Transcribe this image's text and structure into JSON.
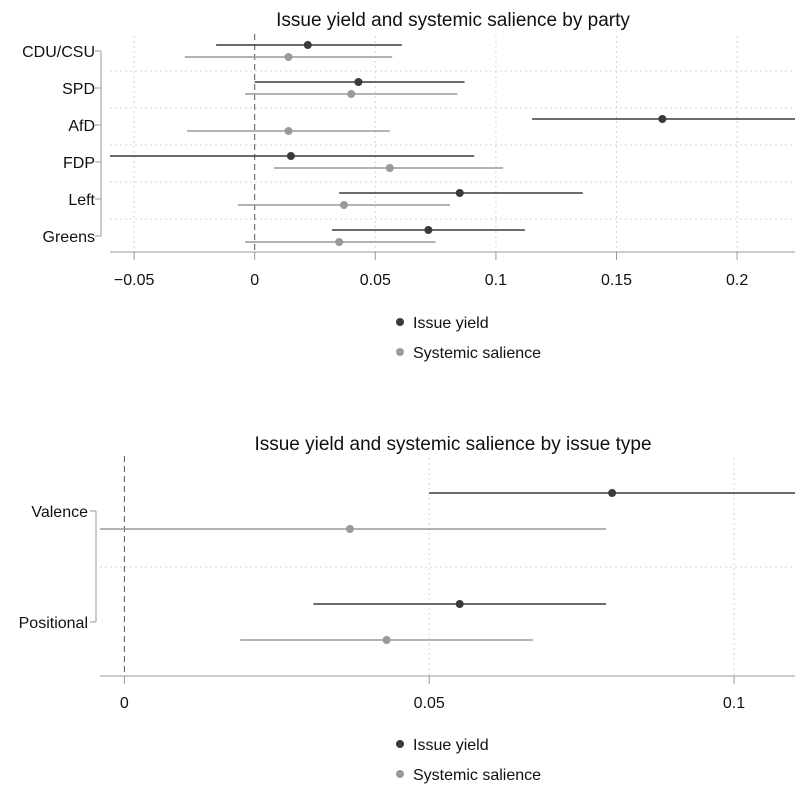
{
  "chart_data": [
    {
      "type": "scatter",
      "variant": "coefficient-plot-with-intervals",
      "title": "Issue yield and systemic salience by party",
      "categories": [
        "CDU/CSU",
        "SPD",
        "AfD",
        "FDP",
        "Left",
        "Greens"
      ],
      "series": [
        {
          "name": "Issue yield",
          "color": "#3a3a3a",
          "points": [
            {
              "category": "CDU/CSU",
              "estimate": 0.022,
              "low": -0.016,
              "high": 0.061
            },
            {
              "category": "SPD",
              "estimate": 0.043,
              "low": 0.0,
              "high": 0.087
            },
            {
              "category": "AfD",
              "estimate": 0.169,
              "low": 0.115,
              "high": 0.224
            },
            {
              "category": "FDP",
              "estimate": 0.015,
              "low": -0.06,
              "high": 0.091
            },
            {
              "category": "Left",
              "estimate": 0.085,
              "low": 0.035,
              "high": 0.136
            },
            {
              "category": "Greens",
              "estimate": 0.072,
              "low": 0.032,
              "high": 0.112
            }
          ]
        },
        {
          "name": "Systemic salience",
          "color": "#9a9a9a",
          "points": [
            {
              "category": "CDU/CSU",
              "estimate": 0.014,
              "low": -0.029,
              "high": 0.057
            },
            {
              "category": "SPD",
              "estimate": 0.04,
              "low": -0.004,
              "high": 0.084
            },
            {
              "category": "AfD",
              "estimate": 0.014,
              "low": -0.028,
              "high": 0.056
            },
            {
              "category": "FDP",
              "estimate": 0.056,
              "low": 0.008,
              "high": 0.103
            },
            {
              "category": "Left",
              "estimate": 0.037,
              "low": -0.007,
              "high": 0.081
            },
            {
              "category": "Greens",
              "estimate": 0.035,
              "low": -0.004,
              "high": 0.075
            }
          ]
        }
      ],
      "xticks": [
        "−0.05",
        "0",
        "0.05",
        "0.1",
        "0.15",
        "0.2"
      ],
      "xtick_values": [
        -0.05,
        0,
        0.05,
        0.1,
        0.15,
        0.2
      ],
      "xlim": [
        -0.06,
        0.224
      ],
      "reference_line": 0,
      "grid": true,
      "legend_position": "bottom-center"
    },
    {
      "type": "scatter",
      "variant": "coefficient-plot-with-intervals",
      "title": "Issue yield and systemic salience by issue type",
      "categories": [
        "Valence",
        "Positional"
      ],
      "series": [
        {
          "name": "Issue yield",
          "color": "#3a3a3a",
          "points": [
            {
              "category": "Valence",
              "estimate": 0.08,
              "low": 0.05,
              "high": 0.11
            },
            {
              "category": "Positional",
              "estimate": 0.055,
              "low": 0.031,
              "high": 0.079
            }
          ]
        },
        {
          "name": "Systemic salience",
          "color": "#9a9a9a",
          "points": [
            {
              "category": "Valence",
              "estimate": 0.037,
              "low": -0.004,
              "high": 0.079
            },
            {
              "category": "Positional",
              "estimate": 0.043,
              "low": 0.019,
              "high": 0.067
            }
          ]
        }
      ],
      "xticks": [
        "0",
        "0.05",
        "0.1"
      ],
      "xtick_values": [
        0,
        0.05,
        0.1
      ],
      "xlim": [
        -0.004,
        0.11
      ],
      "reference_line": 0,
      "grid": true,
      "legend_position": "bottom-center"
    }
  ]
}
